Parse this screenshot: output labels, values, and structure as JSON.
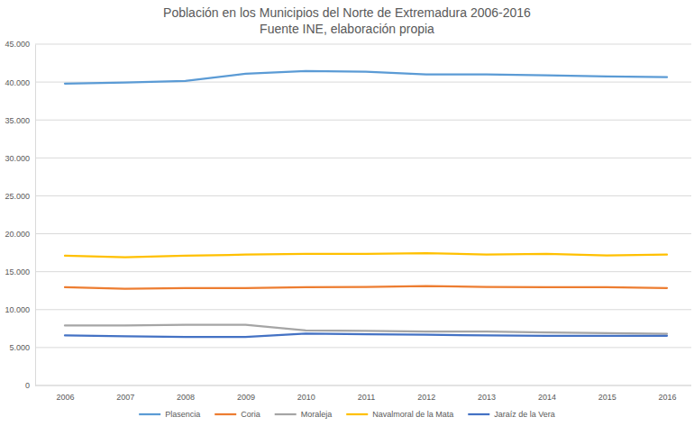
{
  "chart_data": {
    "type": "line",
    "title": "Población en los Municipios del Norte de Extremadura  2006-2016",
    "subtitle": "Fuente INE, elaboración propia",
    "categories": [
      "2006",
      "2007",
      "2008",
      "2009",
      "2010",
      "2011",
      "2012",
      "2013",
      "2014",
      "2015",
      "2016"
    ],
    "series": [
      {
        "name": "Plasencia",
        "color": "#5b9bd5",
        "values": [
          39800,
          39950,
          40150,
          41100,
          41450,
          41350,
          41000,
          41000,
          40900,
          40750,
          40650
        ]
      },
      {
        "name": "Coria",
        "color": "#ed7d31",
        "values": [
          12950,
          12750,
          12850,
          12850,
          12950,
          13000,
          13100,
          13000,
          12950,
          12950,
          12850
        ]
      },
      {
        "name": "Moraleja",
        "color": "#a5a5a5",
        "values": [
          7900,
          7900,
          8000,
          8000,
          7250,
          7200,
          7100,
          7100,
          7000,
          6900,
          6800
        ]
      },
      {
        "name": "Navalmoral de la Mata",
        "color": "#ffc000",
        "values": [
          17100,
          16900,
          17100,
          17250,
          17350,
          17350,
          17450,
          17250,
          17350,
          17150,
          17250
        ]
      },
      {
        "name": "Jaraíz de la Vera",
        "color": "#4472c4",
        "values": [
          6600,
          6500,
          6400,
          6400,
          6850,
          6750,
          6700,
          6600,
          6550,
          6550,
          6550
        ]
      }
    ],
    "ylim": [
      0,
      45000
    ],
    "yticks": [
      0,
      {
        "value": 5000,
        "label": "5.000"
      },
      {
        "value": 10000,
        "label": "10.000"
      },
      {
        "value": 15000,
        "label": "15.000"
      },
      {
        "value": 20000,
        "label": "20.000"
      },
      {
        "value": 25000,
        "label": "25.000"
      },
      {
        "value": 30000,
        "label": "30.000"
      },
      {
        "value": 35000,
        "label": "35.000"
      },
      {
        "value": 40000,
        "label": "40.000"
      },
      {
        "value": 45000,
        "label": "45.000"
      }
    ],
    "grid": true,
    "legend": "bottom"
  }
}
